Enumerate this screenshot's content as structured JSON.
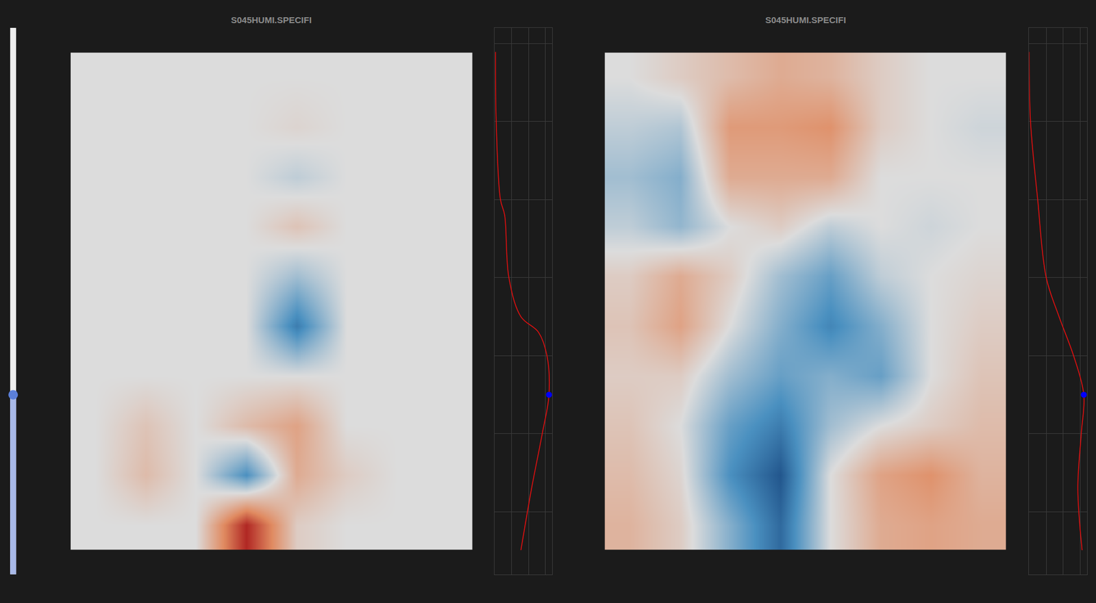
{
  "chart_data": [
    {
      "type": "heatmap",
      "title": "S045HUMI.SPECIFI",
      "tick_labels": false,
      "zlim": [
        -1,
        1
      ],
      "z": [
        [
          0,
          0,
          0,
          0,
          0,
          0,
          0,
          0
        ],
        [
          0,
          0,
          0,
          0,
          0.05,
          0,
          0,
          0
        ],
        [
          0,
          0,
          0,
          0,
          -0.1,
          0,
          0,
          0
        ],
        [
          0,
          0,
          0,
          0,
          0.15,
          0,
          0,
          0
        ],
        [
          0,
          0,
          0,
          0,
          -0.2,
          0,
          0,
          0
        ],
        [
          0,
          0,
          0,
          0,
          -0.6,
          0,
          0,
          0
        ],
        [
          0,
          0,
          0,
          0,
          0,
          0,
          0,
          0
        ],
        [
          0,
          0.15,
          0,
          0.2,
          0.35,
          0,
          0,
          0
        ],
        [
          0,
          0.2,
          0,
          -0.5,
          0.3,
          0.1,
          0,
          0
        ],
        [
          0,
          0,
          0,
          0.9,
          0.1,
          0,
          0,
          0
        ]
      ]
    },
    {
      "type": "line",
      "tick_labels": false,
      "grid": true,
      "xlim": [
        0,
        3.4
      ],
      "xticks": [
        0,
        1,
        2,
        3
      ],
      "ylim": [
        0,
        7
      ],
      "yticks": [
        0.8,
        1.8,
        2.8,
        3.8,
        4.8,
        5.8,
        6.8
      ],
      "series": [
        {
          "type": "line",
          "color": "#e01010",
          "y": [
            6.69,
            5.8,
            4.8,
            4.6,
            3.8,
            3.3,
            3.1,
            2.8,
            2.3,
            1.8,
            1.1,
            0.31
          ],
          "values": [
            0.04,
            0.08,
            0.33,
            0.58,
            0.83,
            1.54,
            2.58,
            3.08,
            3.2,
            2.8,
            2.17,
            1.54
          ]
        },
        {
          "type": "scatter",
          "marker": "circle",
          "color": "#0000ff",
          "y": [
            2.3
          ],
          "values": [
            3.2
          ]
        }
      ]
    },
    {
      "type": "heatmap",
      "title": "S045HUMI.SPECIFI",
      "tick_labels": false,
      "zlim": [
        -1,
        1
      ],
      "z": [
        [
          0,
          0.1,
          0.2,
          0.3,
          0.25,
          0.1,
          0,
          0
        ],
        [
          -0.1,
          -0.15,
          0.4,
          0.4,
          0.45,
          0.1,
          0,
          -0.05
        ],
        [
          -0.2,
          -0.3,
          0.3,
          0.3,
          0.3,
          0,
          0,
          0
        ],
        [
          -0.1,
          -0.25,
          0,
          0.1,
          -0.1,
          0,
          -0.05,
          0
        ],
        [
          0.1,
          0.3,
          0.1,
          -0.2,
          -0.4,
          -0.1,
          0,
          0.05
        ],
        [
          0.15,
          0.35,
          0,
          -0.3,
          -0.55,
          -0.3,
          0,
          0.1
        ],
        [
          0.1,
          0.1,
          -0.2,
          -0.4,
          -0.3,
          -0.4,
          0,
          0.15
        ],
        [
          0.15,
          0,
          -0.4,
          -0.6,
          -0.2,
          0,
          0.1,
          0.2
        ],
        [
          0.2,
          0.05,
          -0.5,
          -0.8,
          0,
          0.35,
          0.45,
          0.25
        ],
        [
          0.25,
          0.1,
          -0.3,
          -0.7,
          0,
          0.3,
          0.35,
          0.3
        ]
      ]
    },
    {
      "type": "line",
      "tick_labels": false,
      "grid": true,
      "xlim": [
        0,
        3.4
      ],
      "xticks": [
        0,
        1,
        2,
        3
      ],
      "ylim": [
        0,
        7
      ],
      "yticks": [
        0.8,
        1.8,
        2.8,
        3.8,
        4.8,
        5.8,
        6.8
      ],
      "series": [
        {
          "type": "line",
          "color": "#e01010",
          "y": [
            6.69,
            5.8,
            4.8,
            3.8,
            3.3,
            2.8,
            2.3,
            1.8,
            1.1,
            0.31
          ],
          "values": [
            0,
            0.08,
            0.5,
            1.0,
            1.75,
            2.6,
            3.2,
            3.05,
            2.85,
            3.1
          ]
        },
        {
          "type": "scatter",
          "marker": "circle",
          "color": "#0000ff",
          "y": [
            2.3
          ],
          "values": [
            3.2
          ]
        }
      ]
    }
  ]
}
